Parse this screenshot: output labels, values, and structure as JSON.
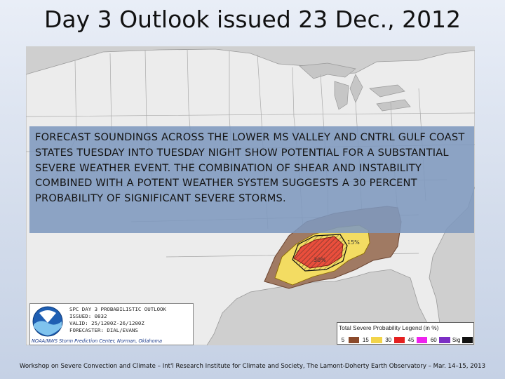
{
  "title": "Day 3 Outlook issued 23 Dec., 2012",
  "overlay_text": "FORECAST SOUNDINGS ACROSS THE LOWER MS VALLEY AND CNTRL GULF COAST STATES TUESDAY INTO TUESDAY NIGHT SHOW POTENTIAL FOR A SUBSTANTIAL SEVERE WEATHER EVENT. THE COMBINATION OF SHEAR AND INSTABILITY COMBINED WITH A POTENT WEATHER SYSTEM SUGGESTS A 30 PERCENT PROBABILITY OF SIGNIFICANT SEVERE STORMS.",
  "map_labels": {
    "contour_15": "15%",
    "contour_30": "30%"
  },
  "info_box": {
    "line1": "SPC DAY 3 PROBABILISTIC OUTLOOK",
    "line2": "ISSUED: 0832",
    "line3": "VALID: 25/1200Z-26/1200Z",
    "line4": "FORECASTER: DIAL/EVANS",
    "credit": "NOAA/NWS Storm Prediction Center, Norman, Oklahoma"
  },
  "legend": {
    "title": "Total Severe Probability Legend (in %)",
    "items": [
      {
        "label": "5",
        "color": "#8b4a2b"
      },
      {
        "label": "15",
        "color": "#f2d44a"
      },
      {
        "label": "30",
        "color": "#e42020"
      },
      {
        "label": "45",
        "color": "#ee22ee"
      },
      {
        "label": "60",
        "color": "#7b2fc4"
      },
      {
        "label": "Sig",
        "color": "#111111"
      }
    ]
  },
  "footer": "Workshop on Severe Convection and Climate – Int'l Research Institute for Climate and Society, The Lamont-Doherty Earth Observatory – Mar. 14–15, 2013"
}
